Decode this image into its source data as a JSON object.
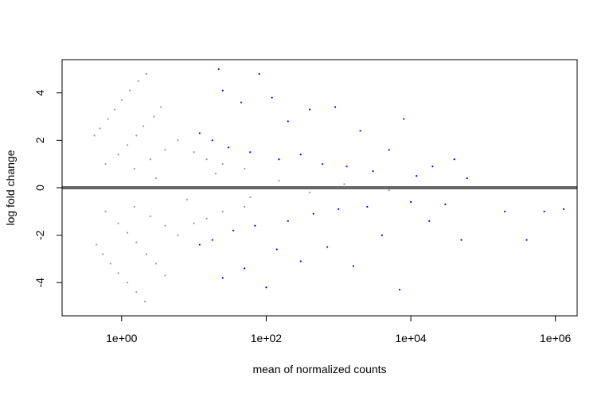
{
  "chart_data": {
    "type": "scatter",
    "title": "",
    "xlabel": "mean of normalized counts",
    "ylabel": "log fold change",
    "x_scale": "log10",
    "xlim": [
      0.15,
      2000000
    ],
    "ylim": [
      -5.4,
      5.4
    ],
    "x_ticks": [
      1,
      100,
      10000,
      1000000
    ],
    "x_tick_labels": [
      "1e+00",
      "1e+02",
      "1e+04",
      "1e+06"
    ],
    "y_ticks": [
      -4,
      -2,
      0,
      2,
      4
    ],
    "y_tick_labels": [
      "-4",
      "-2",
      "0",
      "2",
      "4"
    ],
    "grid": false,
    "legend": "none",
    "reference_line": {
      "y": 0,
      "color": "#666666"
    },
    "colors": {
      "not_significant": "#999999",
      "significant": "#0000ff",
      "zero_line": "#666666"
    },
    "series": [
      {
        "name": "",
        "color": "#999999",
        "marker": "point",
        "points": [
          [
            0.42,
            2.2
          ],
          [
            0.5,
            2.5
          ],
          [
            0.65,
            2.9
          ],
          [
            0.8,
            3.3
          ],
          [
            1.0,
            3.7
          ],
          [
            1.3,
            4.1
          ],
          [
            1.7,
            4.5
          ],
          [
            2.2,
            4.8
          ],
          [
            0.45,
            -2.4
          ],
          [
            0.55,
            -2.8
          ],
          [
            0.7,
            -3.2
          ],
          [
            0.9,
            -3.6
          ],
          [
            1.2,
            -4.0
          ],
          [
            1.6,
            -4.4
          ],
          [
            2.1,
            -4.8
          ],
          [
            0.6,
            1.0
          ],
          [
            0.9,
            1.4
          ],
          [
            1.2,
            1.8
          ],
          [
            1.6,
            2.2
          ],
          [
            2.0,
            2.6
          ],
          [
            2.8,
            3.0
          ],
          [
            3.5,
            3.4
          ],
          [
            0.6,
            -1.0
          ],
          [
            0.9,
            -1.5
          ],
          [
            1.2,
            -1.9
          ],
          [
            1.6,
            -2.3
          ],
          [
            2.2,
            -2.8
          ],
          [
            3.0,
            -3.2
          ],
          [
            4.0,
            -3.7
          ],
          [
            1.5,
            0.8
          ],
          [
            2.5,
            1.2
          ],
          [
            4.0,
            1.6
          ],
          [
            6.0,
            2.0
          ],
          [
            10,
            1.5
          ],
          [
            15,
            1.2
          ],
          [
            25,
            1.0
          ],
          [
            50,
            0.8
          ],
          [
            1.5,
            -0.8
          ],
          [
            2.5,
            -1.2
          ],
          [
            4.0,
            -1.6
          ],
          [
            6.0,
            -2.0
          ],
          [
            10,
            -1.5
          ],
          [
            15,
            -1.3
          ],
          [
            25,
            -1.0
          ],
          [
            50,
            -0.8
          ],
          [
            3,
            0.4
          ],
          [
            8,
            -0.5
          ],
          [
            20,
            0.6
          ],
          [
            60,
            -0.4
          ],
          [
            150,
            0.3
          ],
          [
            400,
            -0.2
          ],
          [
            1200,
            0.15
          ],
          [
            5000,
            -0.1
          ]
        ]
      },
      {
        "name": "",
        "color": "#0000ff",
        "marker": "point",
        "points": [
          [
            12,
            2.3
          ],
          [
            18,
            2.0
          ],
          [
            25,
            4.1
          ],
          [
            30,
            1.7
          ],
          [
            45,
            3.6
          ],
          [
            60,
            1.5
          ],
          [
            80,
            4.8
          ],
          [
            120,
            3.8
          ],
          [
            150,
            1.2
          ],
          [
            200,
            2.8
          ],
          [
            300,
            1.4
          ],
          [
            400,
            3.3
          ],
          [
            600,
            1.0
          ],
          [
            900,
            3.4
          ],
          [
            1300,
            0.9
          ],
          [
            2000,
            2.4
          ],
          [
            3000,
            0.7
          ],
          [
            5000,
            1.6
          ],
          [
            8000,
            2.9
          ],
          [
            12000,
            0.5
          ],
          [
            20000,
            0.9
          ],
          [
            40000,
            1.2
          ],
          [
            60000,
            0.4
          ],
          [
            12,
            -2.4
          ],
          [
            18,
            -2.2
          ],
          [
            25,
            -3.8
          ],
          [
            35,
            -1.8
          ],
          [
            50,
            -3.4
          ],
          [
            70,
            -1.6
          ],
          [
            100,
            -4.2
          ],
          [
            140,
            -2.6
          ],
          [
            200,
            -1.4
          ],
          [
            300,
            -3.1
          ],
          [
            450,
            -1.1
          ],
          [
            700,
            -2.5
          ],
          [
            1000,
            -0.9
          ],
          [
            1600,
            -3.3
          ],
          [
            2500,
            -0.8
          ],
          [
            4000,
            -2.0
          ],
          [
            7000,
            -4.3
          ],
          [
            10000,
            -0.6
          ],
          [
            18000,
            -1.4
          ],
          [
            30000,
            -0.7
          ],
          [
            50000,
            -2.2
          ],
          [
            200000,
            -1.0
          ],
          [
            400000,
            -2.2
          ],
          [
            700000,
            -1.0
          ],
          [
            1300000,
            -0.9
          ],
          [
            22,
            5.0
          ]
        ]
      }
    ]
  }
}
